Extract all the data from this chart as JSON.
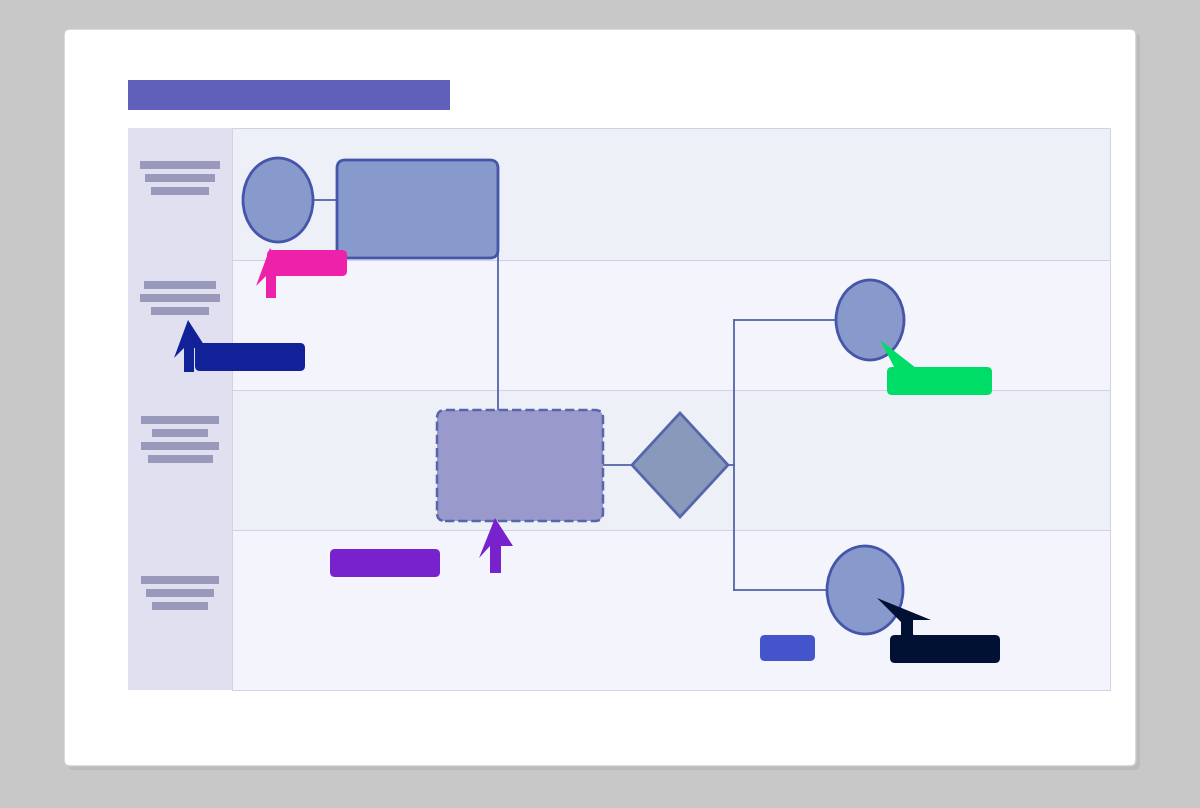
{
  "fig_w": 12.0,
  "fig_h": 8.08,
  "dpi": 100,
  "bg_outer": "#c8c8c8",
  "bg_card": "#ffffff",
  "shadow_color": "#aaaaaa",
  "title_bar_color": "#6060bb",
  "sidebar_color": "#e0e0f0",
  "lane1_color": "#eef0f8",
  "lane2_color": "#f4f5fc",
  "lane3_color": "#eef0f8",
  "lane4_color": "#f4f5fc",
  "text_line_color": "#9999bb",
  "oval_fill": "#8899cc",
  "oval_edge": "#4455aa",
  "rect_fill": "#8899cc",
  "rect_edge": "#4455aa",
  "dashed_fill": "#9999cc",
  "dashed_edge": "#5566aa",
  "diamond_fill": "#8899bb",
  "diamond_edge": "#5566aa",
  "flow_line": "#5566aa",
  "pink": "#ee22aa",
  "green": "#00dd66",
  "purple": "#7722cc",
  "dark_blue": "#112299",
  "dark_navy": "#001133",
  "blue_sm": "#4455cc"
}
